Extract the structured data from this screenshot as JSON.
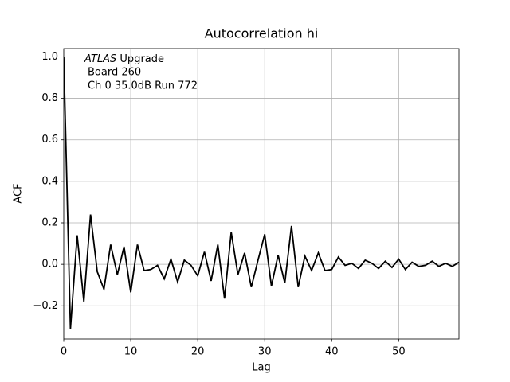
{
  "chart_data": {
    "type": "line",
    "title": "Autocorrelation hi",
    "xlabel": "Lag",
    "ylabel": "ACF",
    "annotation": {
      "italic": "ATLAS",
      "lines": [
        "Upgrade",
        "Board 260",
        "Ch 0 35.0dB  Run 772"
      ]
    },
    "x": [
      0,
      1,
      2,
      3,
      4,
      5,
      6,
      7,
      8,
      9,
      10,
      11,
      12,
      13,
      14,
      15,
      16,
      17,
      18,
      19,
      20,
      21,
      22,
      23,
      24,
      25,
      26,
      27,
      28,
      29,
      30,
      31,
      32,
      33,
      34,
      35,
      36,
      37,
      38,
      39,
      40,
      41,
      42,
      43,
      44,
      45,
      46,
      47,
      48,
      49,
      50,
      51,
      52,
      53,
      54,
      55,
      56,
      57,
      58,
      59
    ],
    "series": [
      {
        "color": "#000000",
        "values": [
          1.0,
          -0.31,
          0.14,
          -0.18,
          0.24,
          -0.035,
          -0.12,
          0.095,
          -0.05,
          0.085,
          -0.135,
          0.095,
          -0.03,
          -0.025,
          -0.005,
          -0.07,
          0.025,
          -0.085,
          0.02,
          -0.005,
          -0.055,
          0.06,
          -0.08,
          0.095,
          -0.165,
          0.155,
          -0.05,
          0.055,
          -0.11,
          0.02,
          0.145,
          -0.105,
          0.045,
          -0.09,
          0.185,
          -0.11,
          0.04,
          -0.03,
          0.055,
          -0.03,
          -0.025,
          0.035,
          -0.005,
          0.005,
          -0.02,
          0.02,
          0.005,
          -0.02,
          0.015,
          -0.015,
          0.025,
          -0.025,
          0.01,
          -0.01,
          -0.005,
          0.015,
          -0.01,
          0.005,
          -0.01,
          0.01
        ]
      }
    ],
    "xlim": [
      0,
      59
    ],
    "ylim": [
      -0.36,
      1.04
    ],
    "xticks": [
      0,
      10,
      20,
      30,
      40,
      50
    ],
    "yticks": [
      {
        "value": -0.2,
        "label": "−0.2"
      },
      {
        "value": 0,
        "label": "0.0"
      },
      0.2,
      0.4,
      0.6,
      0.8,
      {
        "value": 1.0,
        "label": "1.0"
      }
    ],
    "grid": true
  }
}
